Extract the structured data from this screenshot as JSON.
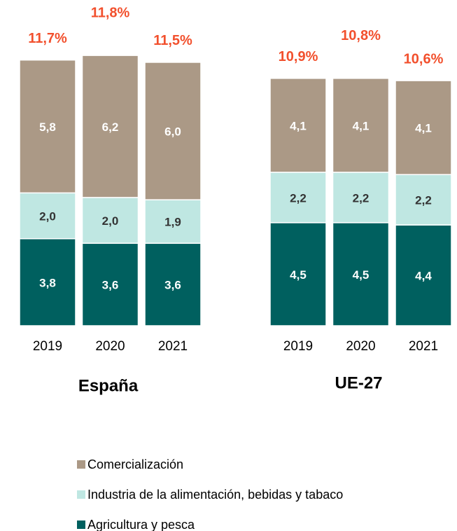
{
  "chart_data": [
    {
      "type": "bar",
      "stacked": true,
      "title": "España",
      "categories": [
        "2019",
        "2020",
        "2021"
      ],
      "series": [
        {
          "name": "Agricultura y pesca",
          "color": "#00605f",
          "values": [
            3.8,
            3.6,
            3.6
          ],
          "value_labels": [
            "3,8",
            "3,6",
            "3,6"
          ]
        },
        {
          "name": "Industria de la alimentación, bebidas y tabaco",
          "color": "#bfe7e2",
          "values": [
            2.0,
            2.0,
            1.9
          ],
          "value_labels": [
            "2,0",
            "2,0",
            "1,9"
          ]
        },
        {
          "name": "Comercialización",
          "color": "#ab9986",
          "values": [
            5.8,
            6.2,
            6.0
          ],
          "value_labels": [
            "5,8",
            "6,2",
            "6,0"
          ]
        }
      ],
      "totals": [
        11.7,
        11.8,
        11.5
      ],
      "total_labels": [
        "11,7%",
        "11,8%",
        "11,5%"
      ],
      "total_color": "#f2502d"
    },
    {
      "type": "bar",
      "stacked": true,
      "title": "UE-27",
      "categories": [
        "2019",
        "2020",
        "2021"
      ],
      "series": [
        {
          "name": "Agricultura y pesca",
          "color": "#00605f",
          "values": [
            4.5,
            4.5,
            4.4
          ],
          "value_labels": [
            "4,5",
            "4,5",
            "4,4"
          ]
        },
        {
          "name": "Industria de la alimentación, bebidas y tabaco",
          "color": "#bfe7e2",
          "values": [
            2.2,
            2.2,
            2.2
          ],
          "value_labels": [
            "2,2",
            "2,2",
            "2,2"
          ]
        },
        {
          "name": "Comercialización",
          "color": "#ab9986",
          "values": [
            4.1,
            4.1,
            4.1
          ],
          "value_labels": [
            "4,1",
            "4,1",
            "4,1"
          ]
        }
      ],
      "totals": [
        10.9,
        10.8,
        10.6
      ],
      "total_labels": [
        "10,9%",
        "10,8%",
        "10,6%"
      ],
      "total_color": "#f2502d"
    }
  ]
}
